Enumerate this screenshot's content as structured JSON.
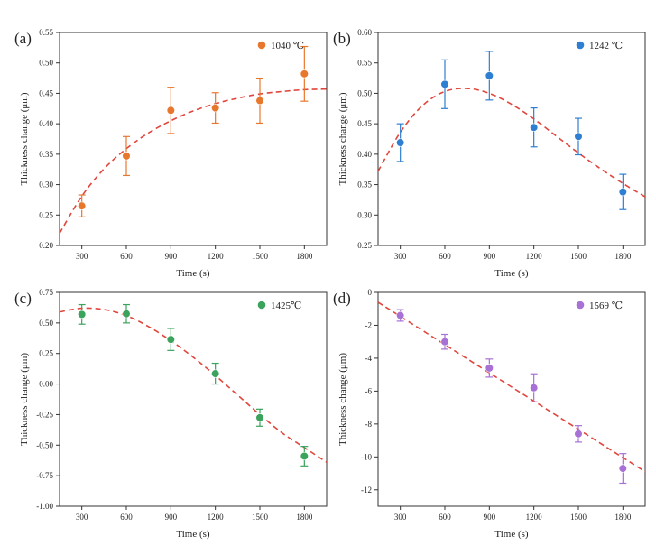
{
  "chart_data": [
    {
      "type": "scatter",
      "panel_label": "(a)",
      "xlabel": "Time (s)",
      "ylabel": "Thickness change (μm)",
      "xlim": [
        150,
        1950
      ],
      "ylim": [
        0.2,
        0.55
      ],
      "x_ticks": [
        300,
        600,
        900,
        1200,
        1500,
        1800
      ],
      "x_tick_labels": [
        "300",
        "600",
        "900",
        "1200",
        "1500",
        "1800"
      ],
      "y_ticks": [
        0.2,
        0.25,
        0.3,
        0.35,
        0.4,
        0.45,
        0.5,
        0.55
      ],
      "y_tick_labels": [
        "0.20",
        "0.25",
        "0.30",
        "0.35",
        "0.40",
        "0.45",
        "0.50",
        "0.55"
      ],
      "legend_position": "top-right",
      "grid": false,
      "series": [
        {
          "name": "1040 ℃",
          "color": "#e8772e",
          "x": [
            300,
            600,
            900,
            1200,
            1500,
            1800
          ],
          "y": [
            0.265,
            0.347,
            0.422,
            0.426,
            0.438,
            0.482
          ],
          "error": [
            0.018,
            0.032,
            0.038,
            0.025,
            0.037,
            0.045
          ]
        }
      ],
      "fit": {
        "color": "#e0463c",
        "style": "dashed",
        "x": [
          150,
          300,
          450,
          600,
          750,
          900,
          1050,
          1200,
          1350,
          1500,
          1650,
          1800,
          1950
        ],
        "y": [
          0.22,
          0.281,
          0.326,
          0.359,
          0.385,
          0.405,
          0.421,
          0.433,
          0.442,
          0.449,
          0.453,
          0.456,
          0.457
        ]
      }
    },
    {
      "type": "scatter",
      "panel_label": "(b)",
      "xlabel": "Time (s)",
      "ylabel": "Thickness change (μm)",
      "xlim": [
        150,
        1950
      ],
      "ylim": [
        0.25,
        0.6
      ],
      "x_ticks": [
        300,
        600,
        900,
        1200,
        1500,
        1800
      ],
      "x_tick_labels": [
        "300",
        "600",
        "900",
        "1200",
        "1500",
        "1800"
      ],
      "y_ticks": [
        0.25,
        0.3,
        0.35,
        0.4,
        0.45,
        0.5,
        0.55,
        0.6
      ],
      "y_tick_labels": [
        "0.25",
        "0.30",
        "0.35",
        "0.40",
        "0.45",
        "0.50",
        "0.55",
        "0.60"
      ],
      "legend_position": "top-right",
      "grid": false,
      "series": [
        {
          "name": "1242 ℃",
          "color": "#2e7fd1",
          "x": [
            300,
            600,
            900,
            1200,
            1500,
            1800
          ],
          "y": [
            0.419,
            0.515,
            0.529,
            0.444,
            0.429,
            0.338
          ],
          "error": [
            0.031,
            0.04,
            0.04,
            0.032,
            0.03,
            0.029
          ]
        }
      ],
      "fit": {
        "color": "#e0463c",
        "style": "dashed",
        "x": [
          150,
          300,
          450,
          600,
          750,
          900,
          1050,
          1200,
          1350,
          1500,
          1650,
          1800,
          1950
        ],
        "y": [
          0.372,
          0.436,
          0.48,
          0.503,
          0.508,
          0.5,
          0.482,
          0.458,
          0.43,
          0.402,
          0.376,
          0.352,
          0.33
        ]
      }
    },
    {
      "type": "scatter",
      "panel_label": "(c)",
      "xlabel": "Time (s)",
      "ylabel": "Thickness change (μm)",
      "xlim": [
        150,
        1950
      ],
      "ylim": [
        -1.0,
        0.75
      ],
      "x_ticks": [
        300,
        600,
        900,
        1200,
        1500,
        1800
      ],
      "x_tick_labels": [
        "300",
        "600",
        "900",
        "1200",
        "1500",
        "1800"
      ],
      "y_ticks": [
        -1.0,
        -0.75,
        -0.5,
        -0.25,
        0.0,
        0.25,
        0.5,
        0.75
      ],
      "y_tick_labels": [
        "-1.00",
        "-0.75",
        "-0.50",
        "-0.25",
        "0.00",
        "0.25",
        "0.50",
        "0.75"
      ],
      "legend_position": "top-right",
      "grid": false,
      "series": [
        {
          "name": "1425℃",
          "color": "#3aa35c",
          "x": [
            300,
            600,
            900,
            1200,
            1500,
            1800
          ],
          "y": [
            0.57,
            0.575,
            0.365,
            0.085,
            -0.275,
            -0.59
          ],
          "error": [
            0.08,
            0.075,
            0.09,
            0.085,
            0.07,
            0.08
          ]
        }
      ],
      "fit": {
        "color": "#e0463c",
        "style": "dashed",
        "x": [
          150,
          300,
          450,
          600,
          750,
          900,
          1050,
          1200,
          1350,
          1500,
          1650,
          1800,
          1950
        ],
        "y": [
          0.59,
          0.62,
          0.61,
          0.56,
          0.47,
          0.355,
          0.22,
          0.07,
          -0.09,
          -0.25,
          -0.4,
          -0.52,
          -0.64
        ]
      }
    },
    {
      "type": "scatter",
      "panel_label": "(d)",
      "xlabel": "Time (s)",
      "ylabel": "Thickness change (μm)",
      "xlim": [
        150,
        1950
      ],
      "ylim": [
        -13,
        0
      ],
      "x_ticks": [
        300,
        600,
        900,
        1200,
        1500,
        1800
      ],
      "x_tick_labels": [
        "300",
        "600",
        "900",
        "1200",
        "1500",
        "1800"
      ],
      "y_ticks": [
        -12,
        -10,
        -8,
        -6,
        -4,
        -2,
        0
      ],
      "y_tick_labels": [
        "-12",
        "-10",
        "-8",
        "-6",
        "-4",
        "-2",
        "0"
      ],
      "legend_position": "top-right",
      "grid": false,
      "series": [
        {
          "name": "1569 ℃",
          "color": "#a771d6",
          "x": [
            300,
            600,
            900,
            1200,
            1500,
            1800
          ],
          "y": [
            -1.4,
            -3.0,
            -4.6,
            -5.8,
            -8.6,
            -10.7
          ],
          "error": [
            0.35,
            0.45,
            0.55,
            0.85,
            0.5,
            0.9
          ]
        }
      ],
      "fit": {
        "color": "#e0463c",
        "style": "dashed",
        "x": [
          150,
          1950
        ],
        "y": [
          -0.6,
          -10.9
        ]
      }
    }
  ]
}
